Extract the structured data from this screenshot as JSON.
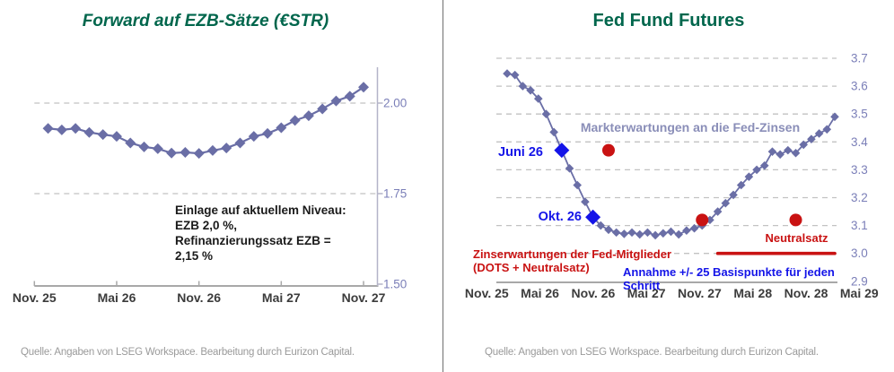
{
  "source_note": "Quelle: Angaben von LSEG Workspace. Bearbeitung durch Eurizon Capital.",
  "colors": {
    "title_green": "#00664c",
    "series_slate": "#6a6ea6",
    "axis_value_label": "#7b7fb8",
    "axis_tick_label": "#3c3c3c",
    "highlight_blue": "#1414e8",
    "fed_red": "#c91212",
    "market_label": "#8a8eb8",
    "grid": "#c2c2c2",
    "axis_line": "#a8a8a8",
    "ezb_right_axis": "#b4b4c8",
    "annotation_text": "#1a1a1a",
    "source_text": "#9a9a9a",
    "divider": "#6f6f6f"
  },
  "chart_data": [
    {
      "id": "ezb",
      "type": "line",
      "title": "Forward auf EZB-Sätze (€STR)",
      "x_axis": {
        "tick_labels": [
          "Nov. 25",
          "Mai 26",
          "Nov. 26",
          "Mai 27",
          "Nov. 27"
        ],
        "tick_months": [
          0,
          6,
          12,
          18,
          24
        ]
      },
      "y_axis": {
        "tick_labels": [
          "2.00",
          "1.75",
          "1.50"
        ],
        "tick_values": [
          2.0,
          1.75,
          1.5
        ]
      },
      "ylim": [
        1.5,
        2.1
      ],
      "grid_values": [
        2.0,
        1.75
      ],
      "grid_on": true,
      "legend": "none",
      "series": [
        {
          "name": "Forward auf EZB-Sätze (€STR)",
          "start_month_offset": 1,
          "values": [
            1.93,
            1.926,
            1.93,
            1.919,
            1.913,
            1.908,
            1.89,
            1.879,
            1.874,
            1.862,
            1.864,
            1.861,
            1.869,
            1.876,
            1.89,
            1.908,
            1.916,
            1.932,
            1.952,
            1.965,
            1.984,
            2.006,
            2.019,
            2.044
          ]
        }
      ],
      "annotation": [
        "Einlage auf aktuellem Niveau:",
        "EZB 2,0 %,",
        "Refinanzierungssatz EZB =",
        "2,15 %"
      ]
    },
    {
      "id": "fed",
      "type": "line",
      "title": "Fed Fund Futures",
      "x_axis": {
        "tick_labels": [
          "Nov. 25",
          "Mai 26",
          "Nov. 26",
          "Mai 27",
          "Nov. 27",
          "Mai 28",
          "Nov. 28",
          "Mai 29"
        ],
        "tick_months": [
          0,
          6,
          12,
          18,
          24,
          30,
          36,
          42
        ]
      },
      "y_axis": {
        "tick_labels": [
          "3.7",
          "3.6",
          "3.5",
          "3.4",
          "3.3",
          "3.2",
          "3.1",
          "3.0",
          "2.9"
        ],
        "tick_values": [
          3.7,
          3.6,
          3.5,
          3.4,
          3.3,
          3.2,
          3.1,
          3.0,
          2.9
        ]
      },
      "ylim": [
        2.9,
        3.7
      ],
      "grid_values": [
        3.7,
        3.6,
        3.5,
        3.4,
        3.3,
        3.2,
        3.1,
        3.0
      ],
      "grid_on": true,
      "legend": "none",
      "series": [
        {
          "name": "Markterwartungen an die Fed-Zinsen",
          "start_month_offset": 0,
          "values": [
            3.645,
            3.64,
            3.6,
            3.585,
            3.555,
            3.5,
            3.435,
            3.37,
            3.305,
            3.245,
            3.185,
            3.13,
            3.1,
            3.085,
            3.075,
            3.07,
            3.075,
            3.068,
            3.075,
            3.065,
            3.072,
            3.078,
            3.068,
            3.082,
            3.09,
            3.1,
            3.12,
            3.15,
            3.18,
            3.21,
            3.245,
            3.275,
            3.3,
            3.315,
            3.365,
            3.355,
            3.37,
            3.36,
            3.39,
            3.41,
            3.43,
            3.445,
            3.49
          ]
        }
      ],
      "highlights": [
        {
          "label": "Juni 26",
          "month_index": 7,
          "value": 3.37
        },
        {
          "label": "Okt. 26",
          "month_index": 11,
          "value": 3.13
        }
      ],
      "fed_dots": {
        "name": "Zinserwartungen der Fed-Mitglieder (DOTS)",
        "points": [
          {
            "month_index": 13,
            "value": 3.37
          },
          {
            "month_index": 25,
            "value": 3.12
          },
          {
            "month_index": 37,
            "value": 3.12
          }
        ]
      },
      "neutral_rate_line": {
        "label": "Neutralsatz",
        "value": 3.0,
        "from_month": 27,
        "to_month": 42
      },
      "labels": {
        "market_expectations": "Markterwartungen an die Fed-Zinsen",
        "dots_line1": "Zinserwartungen der Fed-Mitglieder",
        "dots_line2": "(DOTS + Neutralsatz)",
        "assumption": "Annahme +/- 25 Basispunkte für jeden Schritt"
      }
    }
  ]
}
